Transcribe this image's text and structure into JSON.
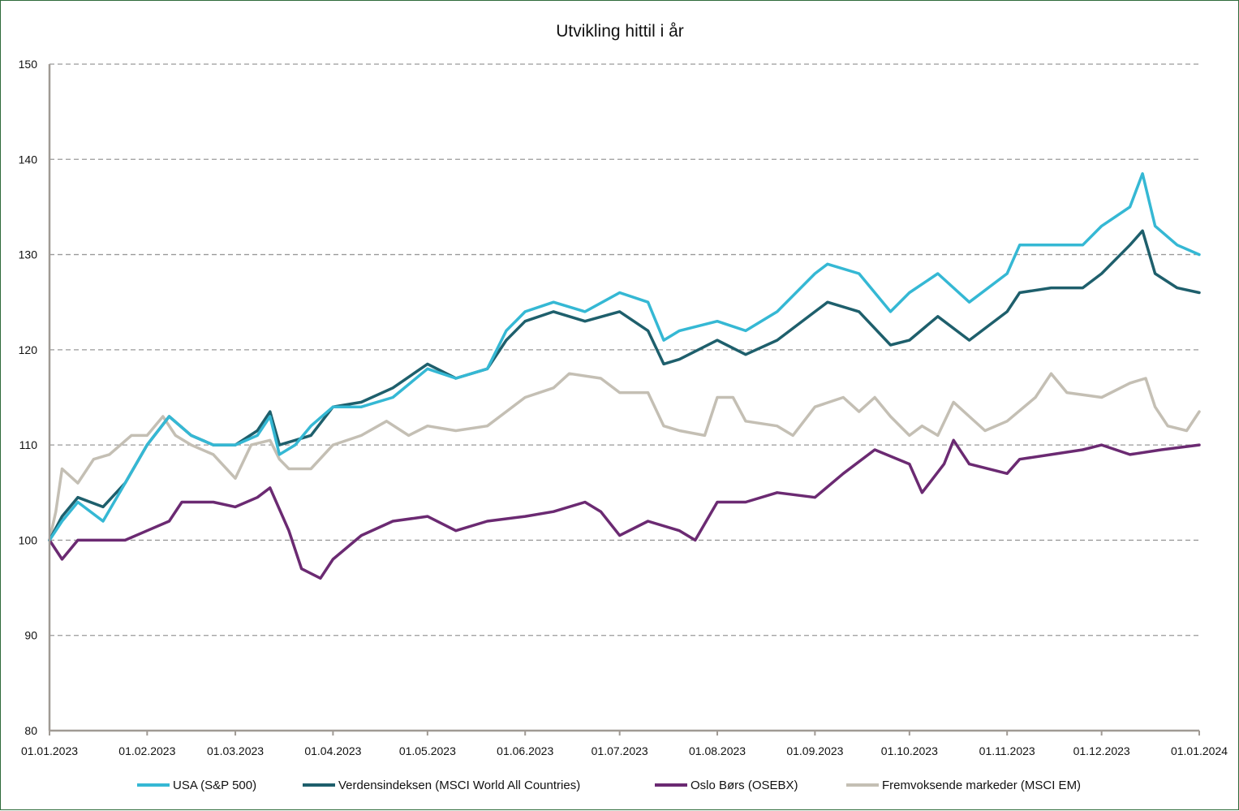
{
  "chart_data": {
    "type": "line",
    "title": "Utvikling hittil i år",
    "xlabel": "",
    "ylabel": "",
    "ylim": [
      80,
      150
    ],
    "yticks": [
      80,
      90,
      100,
      110,
      120,
      130,
      140,
      150
    ],
    "xticks": [
      "01.01.2023",
      "01.02.2023",
      "01.03.2023",
      "01.04.2023",
      "01.05.2023",
      "01.06.2023",
      "01.07.2023",
      "01.08.2023",
      "01.09.2023",
      "01.10.2023",
      "01.11.2023",
      "01.12.2023",
      "01.01.2024"
    ],
    "grid": "horizontal dashed",
    "legend_position": "bottom",
    "series": [
      {
        "name": "USA (S&P 500)",
        "color": "#35b8d4",
        "points": [
          [
            "01.01.2023",
            100
          ],
          [
            "05.01.2023",
            102
          ],
          [
            "10.01.2023",
            104
          ],
          [
            "18.01.2023",
            102
          ],
          [
            "25.01.2023",
            106
          ],
          [
            "01.02.2023",
            110
          ],
          [
            "08.02.2023",
            113
          ],
          [
            "15.02.2023",
            111
          ],
          [
            "22.02.2023",
            110
          ],
          [
            "01.03.2023",
            110
          ],
          [
            "08.03.2023",
            111
          ],
          [
            "12.03.2023",
            113
          ],
          [
            "15.03.2023",
            109
          ],
          [
            "20.03.2023",
            110
          ],
          [
            "25.03.2023",
            112
          ],
          [
            "01.04.2023",
            114
          ],
          [
            "10.04.2023",
            114
          ],
          [
            "20.04.2023",
            115
          ],
          [
            "01.05.2023",
            118
          ],
          [
            "10.05.2023",
            117
          ],
          [
            "20.05.2023",
            118
          ],
          [
            "26.05.2023",
            122
          ],
          [
            "01.06.2023",
            124
          ],
          [
            "10.06.2023",
            125
          ],
          [
            "20.06.2023",
            124
          ],
          [
            "01.07.2023",
            126
          ],
          [
            "10.07.2023",
            125
          ],
          [
            "15.07.2023",
            121
          ],
          [
            "20.07.2023",
            122
          ],
          [
            "01.08.2023",
            123
          ],
          [
            "10.08.2023",
            122
          ],
          [
            "20.08.2023",
            124
          ],
          [
            "01.09.2023",
            128
          ],
          [
            "05.09.2023",
            129
          ],
          [
            "15.09.2023",
            128
          ],
          [
            "25.09.2023",
            124
          ],
          [
            "01.10.2023",
            126
          ],
          [
            "10.10.2023",
            128
          ],
          [
            "20.10.2023",
            125
          ],
          [
            "01.11.2023",
            128
          ],
          [
            "05.11.2023",
            131
          ],
          [
            "15.11.2023",
            131
          ],
          [
            "25.11.2023",
            131
          ],
          [
            "01.12.2023",
            133
          ],
          [
            "10.12.2023",
            135
          ],
          [
            "14.12.2023",
            138.5
          ],
          [
            "18.12.2023",
            133
          ],
          [
            "25.12.2023",
            131
          ],
          [
            "01.01.2024",
            130
          ]
        ]
      },
      {
        "name": "Verdensindeksen (MSCI World All Countries)",
        "color": "#1e5f6c",
        "points": [
          [
            "01.01.2023",
            100
          ],
          [
            "05.01.2023",
            102.5
          ],
          [
            "10.01.2023",
            104.5
          ],
          [
            "18.01.2023",
            103.5
          ],
          [
            "25.01.2023",
            106
          ],
          [
            "01.02.2023",
            110
          ],
          [
            "08.02.2023",
            113
          ],
          [
            "15.02.2023",
            111
          ],
          [
            "22.02.2023",
            110
          ],
          [
            "01.03.2023",
            110
          ],
          [
            "08.03.2023",
            111.5
          ],
          [
            "12.03.2023",
            113.5
          ],
          [
            "15.03.2023",
            110
          ],
          [
            "20.03.2023",
            110.5
          ],
          [
            "25.03.2023",
            111
          ],
          [
            "01.04.2023",
            114
          ],
          [
            "10.04.2023",
            114.5
          ],
          [
            "20.04.2023",
            116
          ],
          [
            "01.05.2023",
            118.5
          ],
          [
            "10.05.2023",
            117
          ],
          [
            "20.05.2023",
            118
          ],
          [
            "26.05.2023",
            121
          ],
          [
            "01.06.2023",
            123
          ],
          [
            "10.06.2023",
            124
          ],
          [
            "20.06.2023",
            123
          ],
          [
            "01.07.2023",
            124
          ],
          [
            "10.07.2023",
            122
          ],
          [
            "15.07.2023",
            118.5
          ],
          [
            "20.07.2023",
            119
          ],
          [
            "01.08.2023",
            121
          ],
          [
            "10.08.2023",
            119.5
          ],
          [
            "20.08.2023",
            121
          ],
          [
            "01.09.2023",
            124
          ],
          [
            "05.09.2023",
            125
          ],
          [
            "15.09.2023",
            124
          ],
          [
            "25.09.2023",
            120.5
          ],
          [
            "01.10.2023",
            121
          ],
          [
            "10.10.2023",
            123.5
          ],
          [
            "20.10.2023",
            121
          ],
          [
            "01.11.2023",
            124
          ],
          [
            "05.11.2023",
            126
          ],
          [
            "15.11.2023",
            126.5
          ],
          [
            "25.11.2023",
            126.5
          ],
          [
            "01.12.2023",
            128
          ],
          [
            "10.12.2023",
            131
          ],
          [
            "14.12.2023",
            132.5
          ],
          [
            "18.12.2023",
            128
          ],
          [
            "25.12.2023",
            126.5
          ],
          [
            "01.01.2024",
            126
          ]
        ]
      },
      {
        "name": "Oslo Børs (OSEBX)",
        "color": "#6b2a72",
        "points": [
          [
            "01.01.2023",
            100
          ],
          [
            "05.01.2023",
            98
          ],
          [
            "10.01.2023",
            100
          ],
          [
            "18.01.2023",
            100
          ],
          [
            "25.01.2023",
            100
          ],
          [
            "01.02.2023",
            101
          ],
          [
            "08.02.2023",
            102
          ],
          [
            "12.02.2023",
            104
          ],
          [
            "22.02.2023",
            104
          ],
          [
            "01.03.2023",
            103.5
          ],
          [
            "08.03.2023",
            104.5
          ],
          [
            "12.03.2023",
            105.5
          ],
          [
            "18.03.2023",
            101
          ],
          [
            "22.03.2023",
            97
          ],
          [
            "28.03.2023",
            96
          ],
          [
            "01.04.2023",
            98
          ],
          [
            "10.04.2023",
            100.5
          ],
          [
            "20.04.2023",
            102
          ],
          [
            "01.05.2023",
            102.5
          ],
          [
            "10.05.2023",
            101
          ],
          [
            "20.05.2023",
            102
          ],
          [
            "01.06.2023",
            102.5
          ],
          [
            "10.06.2023",
            103
          ],
          [
            "20.06.2023",
            104
          ],
          [
            "25.06.2023",
            103
          ],
          [
            "01.07.2023",
            100.5
          ],
          [
            "10.07.2023",
            102
          ],
          [
            "20.07.2023",
            101
          ],
          [
            "25.07.2023",
            100
          ],
          [
            "01.08.2023",
            104
          ],
          [
            "10.08.2023",
            104
          ],
          [
            "20.08.2023",
            105
          ],
          [
            "01.09.2023",
            104.5
          ],
          [
            "10.09.2023",
            107
          ],
          [
            "20.09.2023",
            109.5
          ],
          [
            "01.10.2023",
            108
          ],
          [
            "05.10.2023",
            105
          ],
          [
            "12.10.2023",
            108
          ],
          [
            "15.10.2023",
            110.5
          ],
          [
            "20.10.2023",
            108
          ],
          [
            "01.11.2023",
            107
          ],
          [
            "05.11.2023",
            108.5
          ],
          [
            "15.11.2023",
            109
          ],
          [
            "25.11.2023",
            109.5
          ],
          [
            "01.12.2023",
            110
          ],
          [
            "10.12.2023",
            109
          ],
          [
            "20.12.2023",
            109.5
          ],
          [
            "01.01.2024",
            110
          ]
        ]
      },
      {
        "name": "Fremvoksende markeder (MSCI EM)",
        "color": "#c4bfb4",
        "points": [
          [
            "01.01.2023",
            100
          ],
          [
            "03.01.2023",
            103
          ],
          [
            "05.01.2023",
            107.5
          ],
          [
            "10.01.2023",
            106
          ],
          [
            "15.01.2023",
            108.5
          ],
          [
            "20.01.2023",
            109
          ],
          [
            "27.01.2023",
            111
          ],
          [
            "01.02.2023",
            111
          ],
          [
            "06.02.2023",
            113
          ],
          [
            "10.02.2023",
            111
          ],
          [
            "15.02.2023",
            110
          ],
          [
            "22.02.2023",
            109
          ],
          [
            "01.03.2023",
            106.5
          ],
          [
            "06.03.2023",
            110
          ],
          [
            "12.03.2023",
            110.5
          ],
          [
            "15.03.2023",
            108.5
          ],
          [
            "18.03.2023",
            107.5
          ],
          [
            "25.03.2023",
            107.5
          ],
          [
            "01.04.2023",
            110
          ],
          [
            "10.04.2023",
            111
          ],
          [
            "18.04.2023",
            112.5
          ],
          [
            "25.04.2023",
            111
          ],
          [
            "01.05.2023",
            112
          ],
          [
            "10.05.2023",
            111.5
          ],
          [
            "20.05.2023",
            112
          ],
          [
            "01.06.2023",
            115
          ],
          [
            "10.06.2023",
            116
          ],
          [
            "15.06.2023",
            117.5
          ],
          [
            "25.06.2023",
            117
          ],
          [
            "01.07.2023",
            115.5
          ],
          [
            "10.07.2023",
            115.5
          ],
          [
            "15.07.2023",
            112
          ],
          [
            "20.07.2023",
            111.5
          ],
          [
            "28.07.2023",
            111
          ],
          [
            "01.08.2023",
            115
          ],
          [
            "06.08.2023",
            115
          ],
          [
            "10.08.2023",
            112.5
          ],
          [
            "20.08.2023",
            112
          ],
          [
            "25.08.2023",
            111
          ],
          [
            "01.09.2023",
            114
          ],
          [
            "10.09.2023",
            115
          ],
          [
            "15.09.2023",
            113.5
          ],
          [
            "20.09.2023",
            115
          ],
          [
            "25.09.2023",
            113
          ],
          [
            "01.10.2023",
            111
          ],
          [
            "05.10.2023",
            112
          ],
          [
            "10.10.2023",
            111
          ],
          [
            "15.10.2023",
            114.5
          ],
          [
            "20.10.2023",
            113
          ],
          [
            "25.10.2023",
            111.5
          ],
          [
            "01.11.2023",
            112.5
          ],
          [
            "10.11.2023",
            115
          ],
          [
            "15.11.2023",
            117.5
          ],
          [
            "20.11.2023",
            115.5
          ],
          [
            "01.12.2023",
            115
          ],
          [
            "10.12.2023",
            116.5
          ],
          [
            "15.12.2023",
            117
          ],
          [
            "18.12.2023",
            114
          ],
          [
            "22.12.2023",
            112
          ],
          [
            "28.12.2023",
            111.5
          ],
          [
            "01.01.2024",
            113.5
          ]
        ]
      }
    ]
  }
}
